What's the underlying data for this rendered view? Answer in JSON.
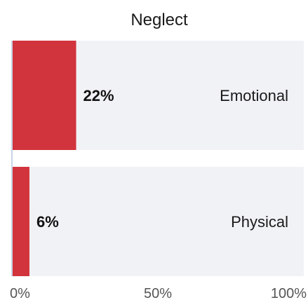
{
  "chart_data": {
    "type": "bar",
    "orientation": "horizontal",
    "title": "Neglect",
    "categories": [
      "Emotional",
      "Physical"
    ],
    "values": [
      22,
      6
    ],
    "value_labels": [
      "22%",
      "6%"
    ],
    "xlim": [
      0,
      100
    ],
    "x_ticks": [
      0,
      50,
      100
    ],
    "x_tick_labels": [
      "0%",
      "50%",
      "100%"
    ],
    "grid": false,
    "legend": "none",
    "bar_color": "#d1343d",
    "track_color": "#f1f2f6",
    "axis_color": "#c9d3e6"
  }
}
